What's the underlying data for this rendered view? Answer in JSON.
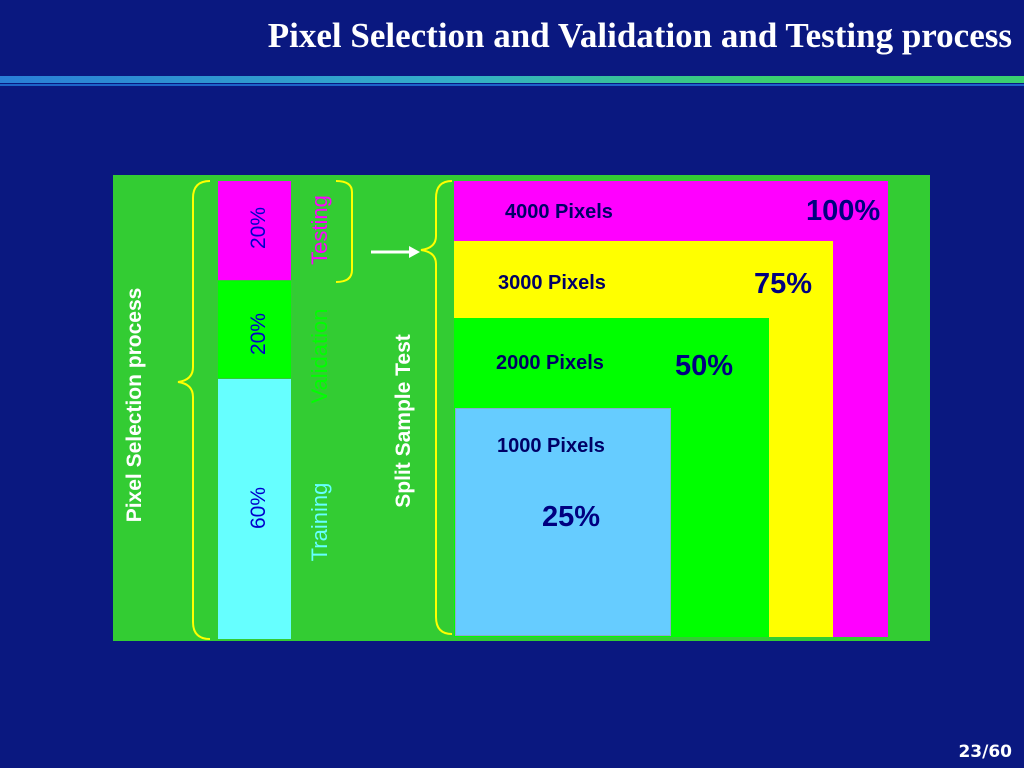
{
  "title": "Pixel Selection and Validation and Testing process",
  "page_number": "23/60",
  "colors": {
    "background": "#0a1880",
    "panel": "#33cc33",
    "magenta": "#ff00ff",
    "yellow": "#ffff00",
    "green": "#00ff00",
    "light_blue": "#66ccff",
    "cyan": "#66ffff",
    "bracket": "#ffff00"
  },
  "diagram": {
    "selection_label": "Pixel Selection process",
    "split_label": "Split Sample Test",
    "segments": [
      {
        "percent": "20%",
        "category": "Testing"
      },
      {
        "percent": "20%",
        "category": "Validation"
      },
      {
        "percent": "60%",
        "category": "Training"
      }
    ],
    "samples": [
      {
        "pixels": "4000 Pixels",
        "percent": "100%"
      },
      {
        "pixels": "3000 Pixels",
        "percent": "75%"
      },
      {
        "pixels": "2000 Pixels",
        "percent": "50%"
      },
      {
        "pixels": "1000 Pixels",
        "percent": "25%"
      }
    ]
  }
}
